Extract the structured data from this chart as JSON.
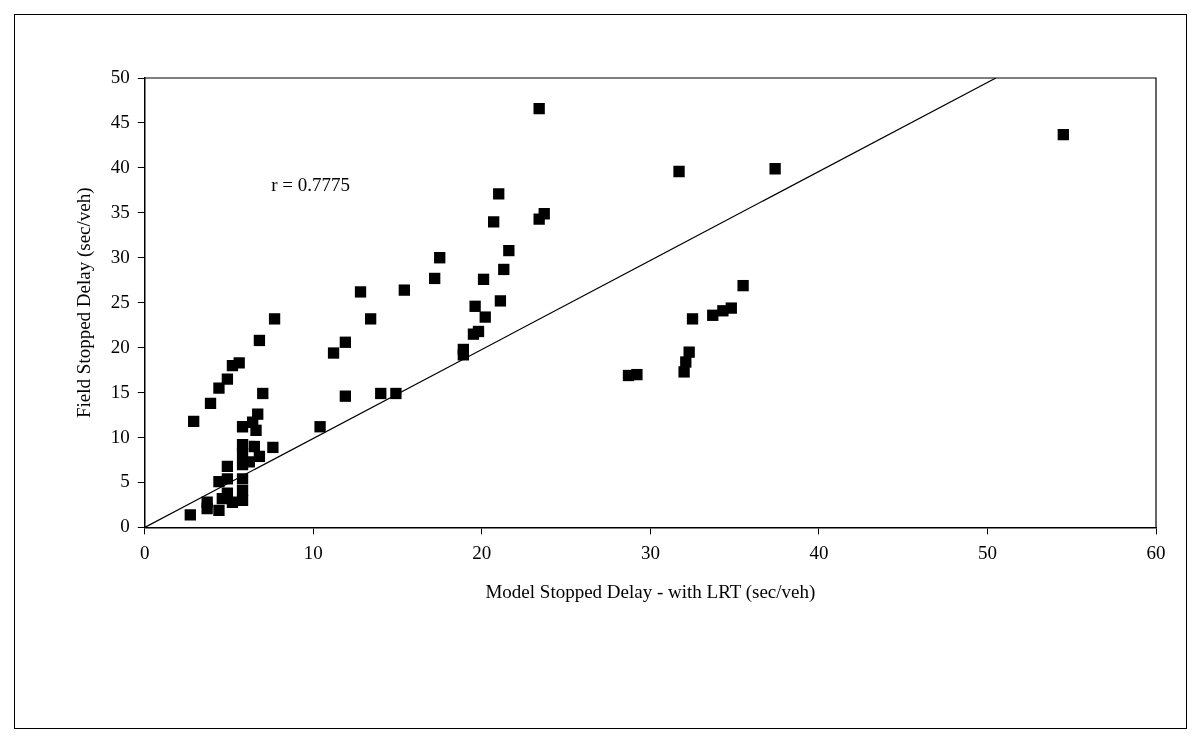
{
  "chart_data": {
    "type": "scatter",
    "xlabel": "Model Stopped Delay - with LRT (sec/veh)",
    "ylabel": "Field Stopped Delay (sec/veh)",
    "annotations": [
      "r = 0.7775"
    ],
    "xlim": [
      0,
      60
    ],
    "xticks": [
      0,
      10,
      20,
      30,
      40,
      50,
      60
    ],
    "ylim": [
      0,
      50
    ],
    "yticks": [
      0,
      5,
      10,
      15,
      20,
      25,
      30,
      35,
      40,
      45,
      50
    ],
    "grid": false,
    "legend": false,
    "marker": "square",
    "series": [
      {
        "color": "#000000",
        "x": [
          7.7,
          6.8,
          5.6,
          5.2,
          4.9,
          4.4,
          7.0,
          3.9,
          2.9,
          10.4,
          6.7,
          6.4,
          5.8,
          6.6,
          7.6,
          6.5,
          6.8,
          5.8,
          5.8,
          6.2,
          4.9,
          5.8,
          4.4,
          4.9,
          5.8,
          5.8,
          4.9,
          5.8,
          5.2,
          4.4,
          3.7,
          3.7,
          2.7,
          4.6,
          23.4,
          21.0,
          20.7,
          23.4,
          23.7,
          21.6,
          17.5,
          21.3,
          17.2,
          20.1,
          12.8,
          15.4,
          19.6,
          21.1,
          20.2,
          13.4,
          19.5,
          19.8,
          18.9,
          18.9,
          11.9,
          11.2,
          11.9,
          14.0,
          14.9,
          54.5,
          31.7,
          37.4,
          35.5,
          34.8,
          34.3,
          33.7,
          32.5,
          32.3,
          32.1,
          32.0,
          28.7,
          29.2
        ],
        "values": [
          23.2,
          20.8,
          18.3,
          18.0,
          16.5,
          15.5,
          14.9,
          13.8,
          11.8,
          11.2,
          12.6,
          11.7,
          11.2,
          10.8,
          8.9,
          9.0,
          7.9,
          9.2,
          8.2,
          7.3,
          6.8,
          7.0,
          5.1,
          5.4,
          5.4,
          4.1,
          3.8,
          3.0,
          2.8,
          1.9,
          2.1,
          2.8,
          1.4,
          3.2,
          46.6,
          37.1,
          34.0,
          34.3,
          34.9,
          30.8,
          30.0,
          28.7,
          27.7,
          27.6,
          26.2,
          26.4,
          24.6,
          25.2,
          23.4,
          23.2,
          21.5,
          21.8,
          19.8,
          19.2,
          20.6,
          19.4,
          14.6,
          14.9,
          14.9,
          43.7,
          39.6,
          39.9,
          26.9,
          24.4,
          24.1,
          23.6,
          23.2,
          19.5,
          18.4,
          17.3,
          16.9,
          17.0
        ]
      },
      {
        "type": "line",
        "color": "#000000",
        "marker": "none",
        "line_style": "solid",
        "x": [
          0,
          50.5
        ],
        "values": [
          0,
          50
        ]
      }
    ]
  }
}
